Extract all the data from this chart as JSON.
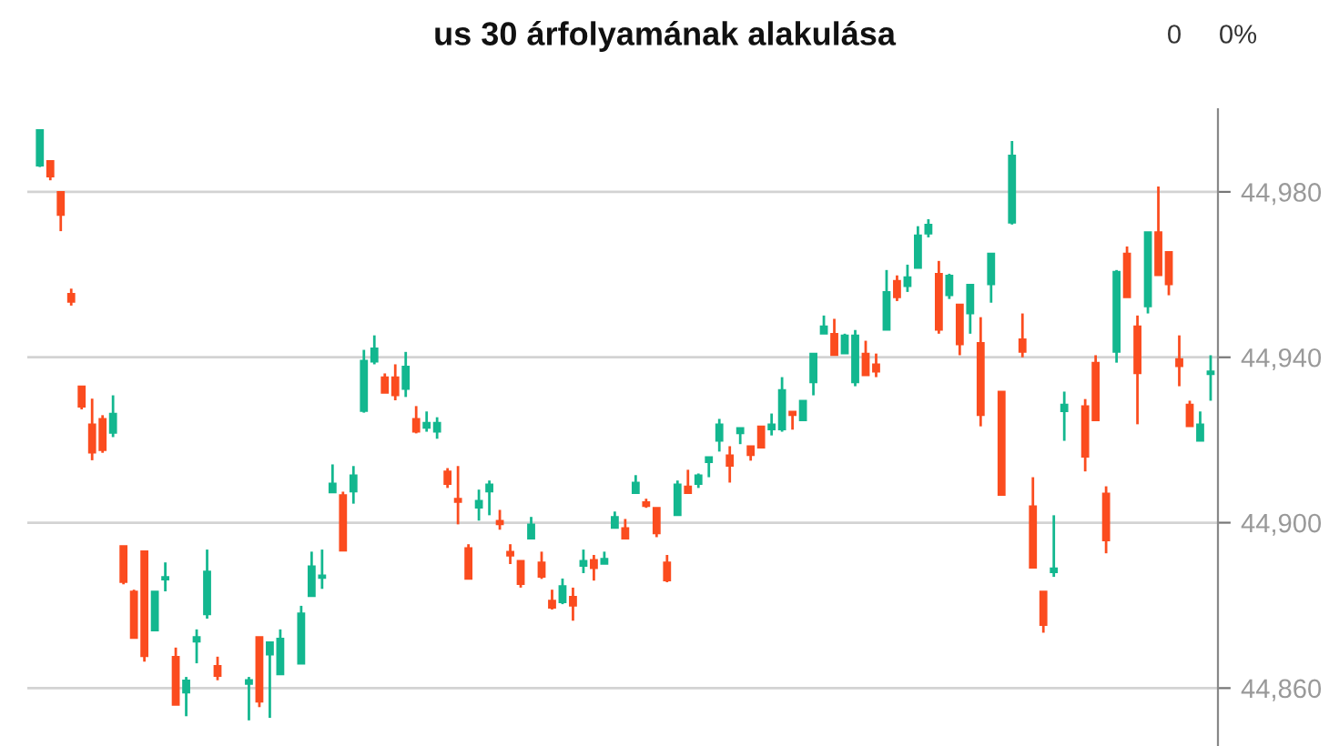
{
  "chart_data": {
    "type": "candlestick",
    "title": "us 30 árfolyamának alakulása",
    "annotations": [
      "0",
      "0%"
    ],
    "categories": [
      null,
      null,
      null,
      null,
      null,
      null,
      null,
      null,
      null,
      null,
      null,
      null,
      null,
      null,
      null,
      null,
      null,
      null,
      null,
      null,
      null,
      null,
      null,
      null,
      null,
      null,
      null,
      null,
      null,
      null,
      null,
      null,
      null,
      null,
      null,
      null,
      null,
      null,
      null,
      null,
      null,
      null,
      null,
      null,
      null,
      null,
      null,
      null,
      null,
      null,
      null,
      null,
      null,
      null,
      null,
      null,
      null,
      null,
      null,
      null,
      null,
      null,
      null,
      null,
      null,
      null,
      null,
      null,
      null,
      null,
      null,
      null,
      null,
      null,
      null,
      null,
      null,
      null,
      null,
      null,
      null,
      null,
      null,
      null,
      null,
      null,
      null,
      null,
      null,
      null,
      null,
      null,
      null,
      null,
      null,
      null,
      null,
      null,
      null,
      null,
      null,
      null,
      null,
      null,
      null,
      null,
      null,
      null,
      null,
      null,
      null,
      null,
      null
    ],
    "ohlc": [
      [
        44986.3,
        44995,
        44986,
        44995
      ],
      [
        44987.5,
        44987.5,
        44982.8,
        44983.7
      ],
      [
        44980,
        44980,
        44970.5,
        44974.4
      ],
      [
        44955.4,
        44956.6,
        44952.5,
        44953.4
      ],
      [
        44933,
        44933,
        44927.4,
        44928
      ],
      [
        44923.8,
        44930,
        44915.1,
        44916.9
      ],
      [
        44925.1,
        44926,
        44916.9,
        44917.5
      ],
      [
        44921.7,
        44930.8,
        44920.7,
        44926.4
      ],
      [
        44894.4,
        44894.4,
        44885.1,
        44885.6
      ],
      [
        44883.4,
        44883.8,
        44872.1,
        44872.1
      ],
      [
        44893.1,
        44893.1,
        44866.4,
        44867.7
      ],
      [
        44873.9,
        44883.4,
        44873.9,
        44883.4
      ],
      [
        44886.2,
        44890.4,
        44883.4,
        44886.9
      ],
      [
        44867.6,
        44869.8,
        44855.9,
        44855.9
      ],
      [
        44858.9,
        44862.7,
        44853.2,
        44861.9
      ],
      [
        44871.2,
        44874.2,
        44866,
        44872.4
      ],
      [
        44877.8,
        44893.5,
        44876.8,
        44888.2
      ],
      [
        44865.4,
        44867.6,
        44861.9,
        44862.9
      ],
      null,
      null,
      [
        44861,
        44862.7,
        44852.2,
        44862
      ],
      [
        44872.4,
        44872.4,
        44855.4,
        44856.7
      ],
      [
        44868.1,
        44871.1,
        44852.8,
        44871.1
      ],
      [
        44863.3,
        44874.2,
        44863.3,
        44872
      ],
      null,
      [
        44865.9,
        44879.9,
        44865.9,
        44878.1
      ],
      [
        44882.2,
        44893,
        44882.2,
        44889.5
      ],
      [
        44886.6,
        44893.5,
        44884,
        44887.3
      ],
      [
        44907.3,
        44914.1,
        44907.3,
        44909.5
      ],
      [
        44906.7,
        44907.5,
        44893.2,
        44893.2
      ],
      [
        44907.5,
        44913.7,
        44904.6,
        44911.5
      ],
      [
        44927,
        44941.8,
        44926.6,
        44939.2
      ],
      [
        44938.9,
        44945.3,
        44938.3,
        44942.2
      ],
      [
        44935.2,
        44936.1,
        44931.4,
        44931.4
      ],
      [
        44935.2,
        44938.3,
        44929.6,
        44930.8
      ],
      [
        44932.3,
        44941.3,
        44930.4,
        44937.8
      ],
      [
        44925.1,
        44928.2,
        44921.6,
        44922
      ],
      [
        44922.9,
        44926.9,
        44922,
        44924.2
      ],
      [
        44922,
        44925.5,
        44920.3,
        44924.2
      ],
      [
        44912.4,
        44913.2,
        44908.4,
        44909.3
      ],
      [
        44905.8,
        44913.7,
        44899.6,
        44905
      ],
      [
        44893.9,
        44894.8,
        44886.4,
        44886.4
      ],
      [
        44903.6,
        44908,
        44900.5,
        44905.3
      ],
      [
        44907.5,
        44910.2,
        44901.8,
        44909.3
      ],
      [
        44900.5,
        44903.1,
        44898.3,
        44899.6
      ],
      [
        44893,
        44894.8,
        44890,
        44892
      ],
      [
        44890.8,
        44890.8,
        44884.3,
        44885.1
      ],
      [
        44896.1,
        44901.4,
        44896.1,
        44899.6
      ],
      [
        44890.4,
        44893,
        44886.4,
        44886.9
      ],
      [
        44881.2,
        44883.8,
        44879,
        44879.4
      ],
      [
        44880.7,
        44886.5,
        44880.3,
        44884.7
      ],
      [
        44882.1,
        44884.3,
        44876.3,
        44879.9
      ],
      [
        44889.5,
        44893.5,
        44887.8,
        44890.8
      ],
      [
        44891,
        44892.2,
        44886,
        44889
      ],
      [
        44890,
        44893,
        44890,
        44891.3
      ],
      [
        44898.7,
        44902.7,
        44898.7,
        44901.4
      ],
      [
        44898.7,
        44900.9,
        44896.1,
        44896.1
      ],
      [
        44907.1,
        44911.5,
        44907.1,
        44909.7
      ],
      [
        44905,
        44905.8,
        44903.6,
        44904
      ],
      [
        44903.6,
        44903.6,
        44896.5,
        44897.4
      ],
      [
        44890.4,
        44892.2,
        44885.6,
        44886
      ],
      [
        44901.8,
        44910.2,
        44901.8,
        44909.3
      ],
      [
        44908.8,
        44912.8,
        44907.1,
        44907.1
      ],
      [
        44909.3,
        44911.9,
        44908.4,
        44911.5
      ],
      [
        44914.6,
        44915.9,
        44911,
        44915.9
      ],
      [
        44919.8,
        44925.1,
        44917.2,
        44923.8
      ],
      [
        44916.3,
        44918.5,
        44909.7,
        44913.7
      ],
      [
        44921.6,
        44922.9,
        44919,
        44922.9
      ],
      [
        44918.5,
        44918.5,
        44915,
        44916.3
      ],
      [
        44923.3,
        44923.3,
        44918.1,
        44918.1
      ],
      [
        44922.5,
        44926.4,
        44921.1,
        44923.8
      ],
      [
        44922.5,
        44935.2,
        44922,
        44932.1
      ],
      [
        44926.9,
        44926.9,
        44922.5,
        44926
      ],
      [
        44924.7,
        44929.5,
        44924.7,
        44929.5
      ],
      [
        44933.9,
        44940.9,
        44930.8,
        44940.9
      ],
      [
        44945.7,
        44950.1,
        44945.7,
        44947.5
      ],
      [
        44945.7,
        44949.3,
        44940.5,
        44940.5
      ],
      [
        44940.9,
        44945.7,
        44940.9,
        44945.3
      ],
      [
        44933.9,
        44946.6,
        44933,
        44945.3
      ],
      [
        44940.9,
        44944,
        44935.6,
        44935.6
      ],
      [
        44938.3,
        44940.9,
        44935.2,
        44936.5
      ],
      [
        44946.6,
        44961.1,
        44946.6,
        44955.8
      ],
      [
        44958.5,
        44959.8,
        44953.6,
        44954.5
      ],
      [
        44957.2,
        44962.4,
        44955.8,
        44959.4
      ],
      [
        44961.6,
        44971.7,
        44961.6,
        44969.5
      ],
      [
        44969.9,
        44973.4,
        44969,
        44972.1
      ],
      [
        44960.2,
        44963.3,
        44945.7,
        44946.6
      ],
      [
        44955,
        44960.2,
        44954.1,
        44959.8
      ],
      [
        44952.8,
        44952.8,
        44940.5,
        44943.1
      ],
      [
        44950.6,
        44957.6,
        44945.7,
        44957.6
      ],
      [
        44943.5,
        44949.7,
        44923.3,
        44926
      ],
      [
        44957.6,
        44965.1,
        44953.2,
        44965.1
      ],
      [
        44931.7,
        44931.7,
        44906.7,
        44906.7
      ],
      [
        44972.5,
        44992.3,
        44972.1,
        44988.8
      ],
      [
        44944.4,
        44950.6,
        44940,
        44941.3
      ],
      [
        44904,
        44911,
        44889.1,
        44889.1
      ],
      [
        44883.4,
        44883.4,
        44873.4,
        44875.2
      ],
      [
        44888,
        44901.8,
        44886.9,
        44889
      ],
      [
        44926.9,
        44931.7,
        44919.8,
        44928.6
      ],
      null,
      [
        44928.2,
        44929.9,
        44912.4,
        44915.9
      ],
      [
        44938.7,
        44940.5,
        44924.7,
        44924.7
      ],
      [
        44907.1,
        44908.8,
        44892.6,
        44895.7
      ],
      [
        44941.3,
        44961.1,
        44938.7,
        44960.7
      ],
      [
        44965.1,
        44966.8,
        44954.5,
        44954.5
      ],
      [
        44947.5,
        44950.1,
        44923.8,
        44936.1
      ],
      [
        44952.3,
        44970.3,
        44950.6,
        44970.3
      ],
      [
        44970.3,
        44981.3,
        44959.8,
        44959.8
      ],
      [
        44965.5,
        44965.5,
        44955,
        44957.6
      ],
      [
        44939.6,
        44945.3,
        44933,
        44937.8
      ],
      [
        44928.6,
        44929.5,
        44923.3,
        44923.3
      ],
      [
        44919.8,
        44926.9,
        44919.8,
        44923.8
      ],
      [
        44935.9,
        44940.5,
        44929.5,
        44936.6
      ]
    ],
    "colors": [
      "#13b78f",
      "#fb4c1f",
      "#fb4c1f",
      "#fb4c1f",
      "#fb4c1f",
      "#fb4c1f",
      "#fb4c1f",
      "#13b78f",
      "#fb4c1f",
      "#fb4c1f",
      "#fb4c1f",
      "#13b78f",
      "#13b78f",
      "#fb4c1f",
      "#13b78f",
      "#13b78f",
      "#13b78f",
      "#fb4c1f",
      null,
      null,
      "#13b78f",
      "#fb4c1f",
      "#13b78f",
      "#13b78f",
      null,
      "#13b78f",
      "#13b78f",
      "#13b78f",
      "#13b78f",
      "#fb4c1f",
      "#13b78f",
      "#13b78f",
      "#13b78f",
      "#fb4c1f",
      "#fb4c1f",
      "#13b78f",
      "#fb4c1f",
      "#13b78f",
      "#13b78f",
      "#fb4c1f",
      "#fb4c1f",
      "#fb4c1f",
      "#13b78f",
      "#13b78f",
      "#fb4c1f",
      "#fb4c1f",
      "#fb4c1f",
      "#13b78f",
      "#fb4c1f",
      "#fb4c1f",
      "#13b78f",
      "#fb4c1f",
      "#13b78f",
      "#fb4c1f",
      "#13b78f",
      "#13b78f",
      "#fb4c1f",
      "#13b78f",
      "#fb4c1f",
      "#fb4c1f",
      "#fb4c1f",
      "#13b78f",
      "#fb4c1f",
      "#13b78f",
      "#13b78f",
      "#13b78f",
      "#fb4c1f",
      "#13b78f",
      "#fb4c1f",
      "#fb4c1f",
      "#13b78f",
      "#13b78f",
      "#fb4c1f",
      "#13b78f",
      "#13b78f",
      "#13b78f",
      "#fb4c1f",
      "#13b78f",
      "#13b78f",
      "#fb4c1f",
      "#fb4c1f",
      "#13b78f",
      "#fb4c1f",
      "#13b78f",
      "#13b78f",
      "#13b78f",
      "#fb4c1f",
      "#13b78f",
      "#fb4c1f",
      "#13b78f",
      "#fb4c1f",
      "#13b78f",
      "#fb4c1f",
      "#13b78f",
      "#fb4c1f",
      "#fb4c1f",
      "#fb4c1f",
      "#13b78f",
      "#13b78f",
      null,
      "#fb4c1f",
      "#fb4c1f",
      "#fb4c1f",
      "#13b78f",
      "#fb4c1f",
      "#fb4c1f",
      "#13b78f",
      "#fb4c1f",
      "#fb4c1f",
      "#fb4c1f",
      "#fb4c1f",
      "#13b78f",
      "#13b78f"
    ],
    "ylim": [
      44846,
      45000
    ],
    "yticks": [
      {
        "value": 44860,
        "label": "44,860"
      },
      {
        "value": 44900,
        "label": "44,900"
      },
      {
        "value": 44940,
        "label": "44,940"
      },
      {
        "value": 44980,
        "label": "44,980"
      }
    ],
    "grid": "y",
    "tick_labels": "y"
  }
}
